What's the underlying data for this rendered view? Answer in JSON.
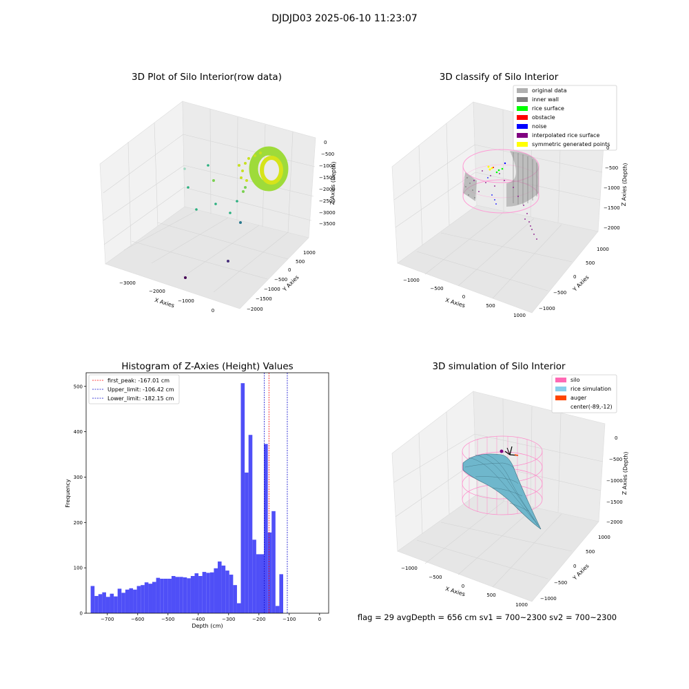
{
  "suptitle": "DJDJD03 2025-06-10 11:23:07",
  "footer": "flag = 29  avgDepth = 656 cm  sv1 = 700~2300  sv2 = 700~2300",
  "chart_data": [
    {
      "type": "scatter",
      "projection": "3d",
      "title": "3D Plot of Silo Interior(row data)",
      "xlabel": "X Axies",
      "ylabel": "Y Axies",
      "zlabel": "Z Axies (Depth)",
      "xticks": [
        "−3000",
        "−2000",
        "−1000",
        "0"
      ],
      "yticks": [
        "1000",
        "500",
        "0",
        "−500",
        "−1000",
        "−1500",
        "−2000"
      ],
      "zticks": [
        "0",
        "−500",
        "−1000",
        "−1500",
        "−2000",
        "−2500",
        "−3000",
        "−3500"
      ],
      "colormap": "viridis",
      "grid": true
    },
    {
      "type": "scatter",
      "projection": "3d",
      "title": "3D classify of Silo Interior",
      "xlabel": "X Axies",
      "ylabel": "Y Axies",
      "zlabel": "Z Axies (Depth)",
      "xticks": [
        "−1000",
        "−500",
        "0",
        "500",
        "1000"
      ],
      "yticks": [
        "1000",
        "500",
        "0",
        "−500",
        "−1000"
      ],
      "zticks": [
        "0",
        "−500",
        "−1000",
        "−1500",
        "−2000"
      ],
      "legend_position": "top-right",
      "legend": [
        {
          "label": "original data",
          "color": "#b0b0b0"
        },
        {
          "label": "inner wall",
          "color": "#808080"
        },
        {
          "label": "rice surface",
          "color": "#00ff00"
        },
        {
          "label": "obstacle",
          "color": "#ff0000"
        },
        {
          "label": "noise",
          "color": "#0000ff"
        },
        {
          "label": "interpolated rice surface",
          "color": "#800080"
        },
        {
          "label": "symmetric generated points",
          "color": "#ffff00"
        }
      ],
      "grid": true
    },
    {
      "type": "bar",
      "title": "Histogram of Z-Axies (Height) Values",
      "xlabel": "Depth (cm)",
      "ylabel": "Frequency",
      "xlim": [
        -770,
        30
      ],
      "ylim": [
        0,
        530
      ],
      "xticks": [
        -700,
        -600,
        -500,
        -400,
        -300,
        -200,
        -100,
        0
      ],
      "yticks": [
        0,
        100,
        200,
        300,
        400,
        500
      ],
      "bar_color": "#4f4ff7",
      "bin_start": -755,
      "bin_width": 12.7,
      "values": [
        60,
        38,
        42,
        46,
        36,
        43,
        37,
        54,
        45,
        52,
        55,
        52,
        60,
        62,
        68,
        65,
        69,
        78,
        76,
        76,
        76,
        82,
        80,
        80,
        79,
        77,
        82,
        88,
        82,
        91,
        89,
        90,
        99,
        114,
        105,
        94,
        85,
        62,
        22,
        507,
        310,
        393,
        162,
        130,
        130,
        373,
        178,
        225,
        16,
        86
      ],
      "vlines": [
        {
          "label": "first_peak: -167.01 cm",
          "x": -167.01,
          "color": "#ff0000"
        },
        {
          "label": "Upper_limit: -106.42 cm",
          "x": -106.42,
          "color": "#0000cc"
        },
        {
          "label": "Lower_limit: -182.15 cm",
          "x": -182.15,
          "color": "#0000cc"
        }
      ],
      "legend_position": "top-left"
    },
    {
      "type": "surface",
      "projection": "3d",
      "title": "3D simulation of Silo Interior",
      "xlabel": "X Axies",
      "ylabel": "Y Axies",
      "zlabel": "Z Axies (Depth)",
      "xticks": [
        "−1000",
        "−500",
        "0",
        "500",
        "1000"
      ],
      "yticks": [
        "1000",
        "500",
        "0",
        "−500",
        "−1000"
      ],
      "zticks": [
        "0",
        "−500",
        "−1000",
        "−1500",
        "−2000"
      ],
      "legend_position": "top-right",
      "legend": [
        {
          "label": "silo",
          "color": "#ff69b4"
        },
        {
          "label": "rice simulation",
          "color": "#87ceeb"
        },
        {
          "label": "auger",
          "color": "#ff4500"
        },
        {
          "label": "center(-89,-12)",
          "color": ""
        }
      ],
      "grid": true
    }
  ]
}
